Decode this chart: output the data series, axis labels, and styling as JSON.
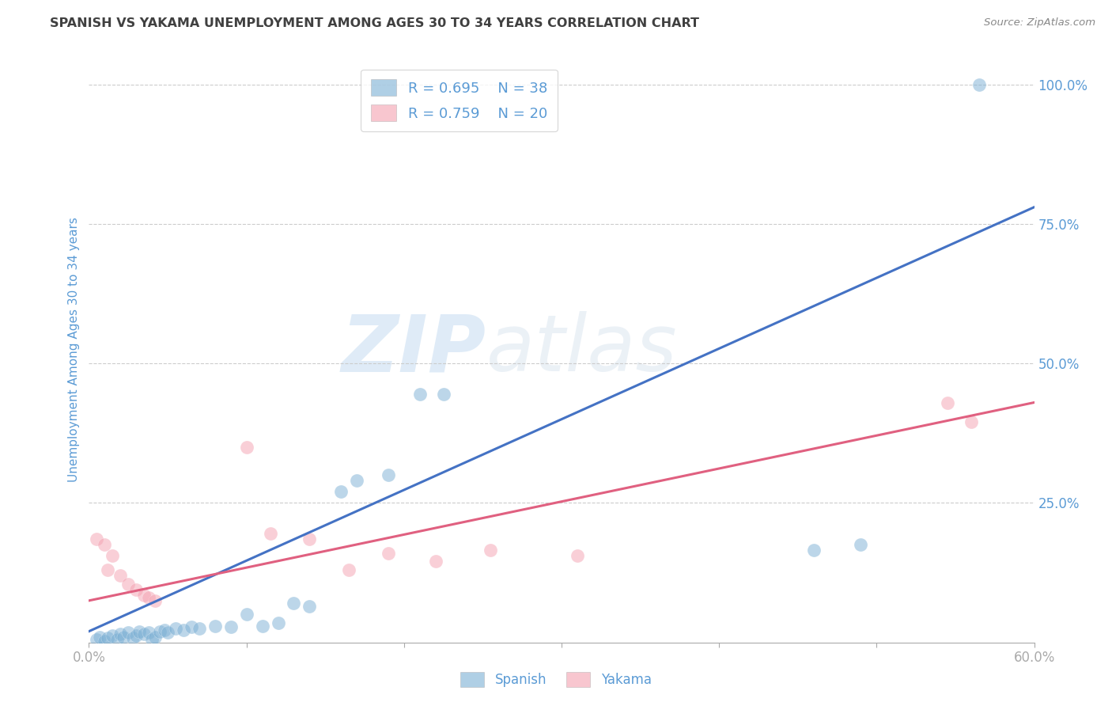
{
  "title": "SPANISH VS YAKAMA UNEMPLOYMENT AMONG AGES 30 TO 34 YEARS CORRELATION CHART",
  "source": "Source: ZipAtlas.com",
  "ylabel": "Unemployment Among Ages 30 to 34 years",
  "xlim": [
    0.0,
    0.6
  ],
  "ylim": [
    0.0,
    1.05
  ],
  "xticks": [
    0.0,
    0.1,
    0.2,
    0.3,
    0.4,
    0.5,
    0.6
  ],
  "xticklabels": [
    "0.0%",
    "",
    "",
    "",
    "",
    "",
    "60.0%"
  ],
  "yticks": [
    0.25,
    0.5,
    0.75,
    1.0
  ],
  "yticklabels": [
    "25.0%",
    "50.0%",
    "75.0%",
    "100.0%"
  ],
  "spanish_R": 0.695,
  "spanish_N": 38,
  "yakama_R": 0.759,
  "yakama_N": 20,
  "spanish_color": "#7BAFD4",
  "yakama_color": "#F4A0B0",
  "spanish_line_color": "#4472C4",
  "yakama_line_color": "#E06080",
  "watermark_zip": "ZIP",
  "watermark_atlas": "atlas",
  "title_color": "#404040",
  "tick_color": "#5B9BD5",
  "spanish_scatter": [
    [
      0.005,
      0.005
    ],
    [
      0.007,
      0.01
    ],
    [
      0.01,
      0.003
    ],
    [
      0.012,
      0.008
    ],
    [
      0.015,
      0.012
    ],
    [
      0.018,
      0.005
    ],
    [
      0.02,
      0.015
    ],
    [
      0.022,
      0.01
    ],
    [
      0.025,
      0.018
    ],
    [
      0.028,
      0.008
    ],
    [
      0.03,
      0.012
    ],
    [
      0.032,
      0.02
    ],
    [
      0.035,
      0.015
    ],
    [
      0.038,
      0.018
    ],
    [
      0.04,
      0.005
    ],
    [
      0.042,
      0.01
    ],
    [
      0.045,
      0.02
    ],
    [
      0.048,
      0.022
    ],
    [
      0.05,
      0.018
    ],
    [
      0.055,
      0.025
    ],
    [
      0.06,
      0.022
    ],
    [
      0.065,
      0.028
    ],
    [
      0.07,
      0.025
    ],
    [
      0.08,
      0.03
    ],
    [
      0.09,
      0.028
    ],
    [
      0.1,
      0.05
    ],
    [
      0.11,
      0.03
    ],
    [
      0.12,
      0.035
    ],
    [
      0.13,
      0.07
    ],
    [
      0.14,
      0.065
    ],
    [
      0.16,
      0.27
    ],
    [
      0.17,
      0.29
    ],
    [
      0.19,
      0.3
    ],
    [
      0.21,
      0.445
    ],
    [
      0.225,
      0.445
    ],
    [
      0.46,
      0.165
    ],
    [
      0.49,
      0.175
    ],
    [
      0.565,
      1.0
    ]
  ],
  "yakama_scatter": [
    [
      0.005,
      0.185
    ],
    [
      0.01,
      0.175
    ],
    [
      0.012,
      0.13
    ],
    [
      0.015,
      0.155
    ],
    [
      0.02,
      0.12
    ],
    [
      0.025,
      0.105
    ],
    [
      0.03,
      0.095
    ],
    [
      0.035,
      0.085
    ],
    [
      0.038,
      0.08
    ],
    [
      0.042,
      0.075
    ],
    [
      0.1,
      0.35
    ],
    [
      0.115,
      0.195
    ],
    [
      0.14,
      0.185
    ],
    [
      0.165,
      0.13
    ],
    [
      0.19,
      0.16
    ],
    [
      0.22,
      0.145
    ],
    [
      0.255,
      0.165
    ],
    [
      0.31,
      0.155
    ],
    [
      0.545,
      0.43
    ],
    [
      0.56,
      0.395
    ]
  ],
  "spanish_trendline_x": [
    0.0,
    0.6
  ],
  "spanish_trendline_y": [
    0.02,
    0.78
  ],
  "yakama_trendline_x": [
    0.0,
    0.6
  ],
  "yakama_trendline_y": [
    0.075,
    0.43
  ],
  "background_color": "#FFFFFF",
  "grid_color": "#CCCCCC"
}
